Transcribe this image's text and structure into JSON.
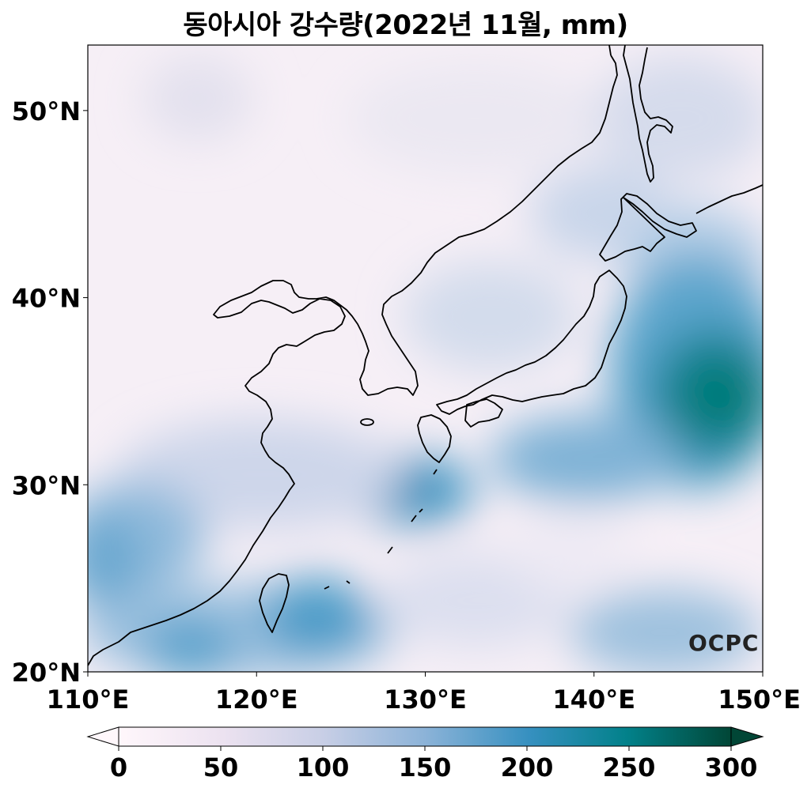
{
  "title": "동아시아 강수량(2022년 11월, mm)",
  "map": {
    "lon_range": [
      110,
      150
    ],
    "lat_range": [
      20,
      53.5
    ],
    "lon_ticks": [
      110,
      120,
      130,
      140,
      150
    ],
    "lat_ticks": [
      20,
      30,
      40,
      50
    ],
    "lon_tick_labels": [
      "110°E",
      "120°E",
      "130°E",
      "140°E",
      "150°E"
    ],
    "lat_tick_labels": [
      "20°N",
      "30°N",
      "40°N",
      "50°N"
    ],
    "coastlines": "black outline"
  },
  "colorbar": {
    "range": [
      0,
      300
    ],
    "ticks": [
      0,
      50,
      100,
      150,
      200,
      250,
      300
    ],
    "tick_labels": [
      "0",
      "50",
      "100",
      "150",
      "200",
      "250",
      "300"
    ],
    "extend": "both",
    "colors": [
      "#ffffff",
      "#f3eaf4",
      "#d6d8ea",
      "#a8c2de",
      "#5aa2cc",
      "#2c87b8",
      "#04808a",
      "#016450"
    ]
  },
  "logo": "OCPC"
}
